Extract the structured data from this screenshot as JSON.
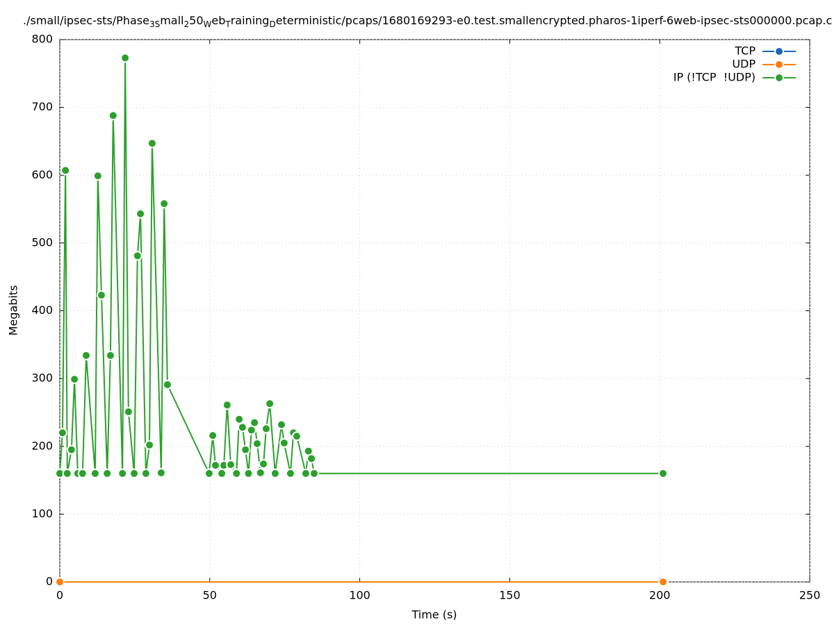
{
  "chart_data": {
    "type": "line",
    "title_segments": [
      {
        "text": "./small/ipsec-sts/Phase"
      },
      {
        "text": "3S",
        "sub": true
      },
      {
        "text": "mall"
      },
      {
        "text": "2",
        "sub": true
      },
      {
        "text": "50"
      },
      {
        "text": "W",
        "sub": true
      },
      {
        "text": "eb"
      },
      {
        "text": "T",
        "sub": true
      },
      {
        "text": "raining"
      },
      {
        "text": "D",
        "sub": true
      },
      {
        "text": "eterministic/pcaps/1680169293-e0.test.smallencrypted.pharos-1iperf-6web-ipsec-sts000000.pcap.c"
      }
    ],
    "x_label": "Time (s)",
    "y_label": "Megabits",
    "xlim": [
      0,
      250
    ],
    "xticks": [
      0,
      50,
      100,
      150,
      200,
      250
    ],
    "ylim": [
      0,
      800
    ],
    "yticks": [
      0,
      100,
      200,
      300,
      400,
      500,
      600,
      700,
      800
    ],
    "grid": true,
    "legend": "top-right",
    "series": [
      {
        "name": "TCP",
        "color": "#1a66b5",
        "x": [
          0,
          201.1
        ],
        "values": [
          0,
          0
        ]
      },
      {
        "name": "UDP",
        "color": "#ff7f0e",
        "x": [
          0,
          201.1
        ],
        "values": [
          0,
          0
        ]
      },
      {
        "name": "IP (!TCP  !UDP)",
        "color": "#2ca02c",
        "x": [
          0,
          0.9,
          1.9,
          2.5,
          3.9,
          4.9,
          6,
          7.6,
          8.8,
          11.8,
          12.7,
          13.9,
          15.8,
          16.9,
          17.8,
          20.9,
          21.8,
          22.9,
          24.8,
          25.9,
          26.9,
          28.7,
          29.9,
          30.8,
          33.8,
          34.8,
          35.9,
          49.8,
          51,
          51.9,
          54,
          54.7,
          55.8,
          57,
          58.9,
          59.8,
          60.9,
          61.9,
          62.9,
          63.9,
          64.9,
          65.8,
          66.9,
          67.9,
          68.8,
          70,
          71.8,
          73.9,
          74.8,
          76.9,
          77.9,
          79,
          82,
          82.9,
          83.9,
          84.8,
          201.1
        ],
        "values": [
          160,
          220,
          607,
          160,
          195,
          299,
          160,
          160,
          334,
          160,
          599,
          423,
          160,
          334,
          688,
          160,
          773,
          251,
          160,
          481,
          543,
          160,
          202,
          647,
          161,
          558,
          291,
          160,
          216,
          172,
          160,
          172,
          261,
          173,
          160,
          240,
          228,
          195,
          160,
          224,
          235,
          204,
          161,
          174,
          226,
          263,
          160,
          232,
          205,
          160,
          220,
          215,
          160,
          193,
          182,
          160,
          160
        ]
      }
    ]
  }
}
